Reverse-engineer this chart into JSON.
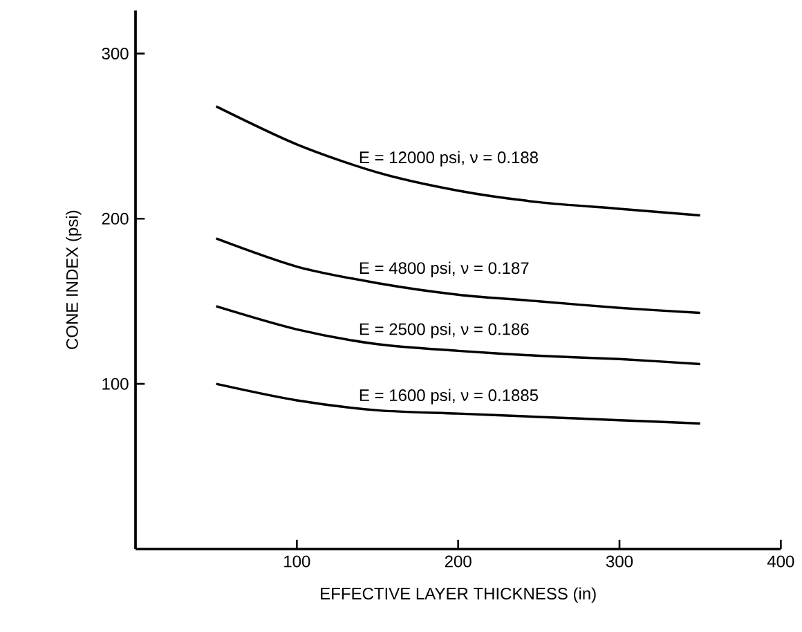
{
  "chart_data": {
    "type": "line",
    "xlabel": "EFFECTIVE LAYER THICKNESS (in)",
    "ylabel": "CONE INDEX (psi)",
    "x": [
      50,
      100,
      150,
      200,
      250,
      300,
      350
    ],
    "series": [
      {
        "name": "E = 12000 psi, ν = 0.188",
        "color": "#000000",
        "values": [
          268,
          245,
          228,
          217,
          210,
          206,
          202
        ]
      },
      {
        "name": "E = 4800 psi, ν = 0.187",
        "color": "#000000",
        "values": [
          188,
          171,
          161,
          154,
          150,
          146,
          143
        ]
      },
      {
        "name": "E = 2500 psi, ν = 0.186",
        "color": "#000000",
        "values": [
          147,
          133,
          124,
          120,
          117,
          115,
          112
        ]
      },
      {
        "name": "E = 1600 psi, ν = 0.1885",
        "color": "#000000",
        "values": [
          100,
          90,
          84,
          82,
          80,
          78,
          76
        ]
      }
    ],
    "xlim": [
      0,
      400
    ],
    "ylim": [
      0,
      326
    ],
    "xticks": [
      100,
      200,
      300,
      400
    ],
    "yticks": [
      100,
      200,
      300
    ],
    "grid": false,
    "legend": false,
    "marker": "none",
    "line_style": "solid"
  }
}
